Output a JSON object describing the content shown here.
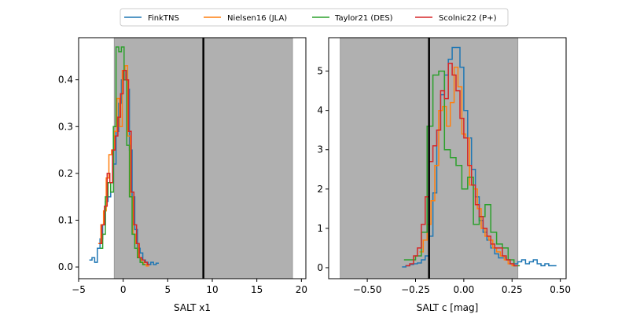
{
  "legend": {
    "placement": "top-center",
    "entries": [
      {
        "label": "FinkTNS",
        "color": "#1f77b4"
      },
      {
        "label": "Nielsen16 (JLA)",
        "color": "#ff7f0e"
      },
      {
        "label": "Taylor21 (DES)",
        "color": "#2ca02c"
      },
      {
        "label": "Scolnic22 (P+)",
        "color": "#d62728"
      }
    ]
  },
  "chart_data": [
    {
      "type": "step-histogram",
      "xlabel": "SALT x1",
      "ylabel": "",
      "xlim": [
        -5,
        20.5
      ],
      "ylim": [
        -0.025,
        0.49
      ],
      "xticks": [
        -5,
        0,
        5,
        10,
        15,
        20
      ],
      "xtick_labels": [
        "−5",
        "0",
        "5",
        "10",
        "15",
        "20"
      ],
      "yticks": [
        0.0,
        0.1,
        0.2,
        0.3,
        0.4
      ],
      "ytick_labels": [
        "0.0",
        "0.1",
        "0.2",
        "0.3",
        "0.4"
      ],
      "shaded_band": {
        "x0": -1.0,
        "x1": 19.0,
        "color": "#b0b0b0"
      },
      "vline": {
        "x": 9.0,
        "color": "#000000"
      },
      "grid": false,
      "series": [
        {
          "name": "FinkTNS",
          "color": "#1f77b4",
          "edges": [
            -3.8,
            -3.5,
            -3.2,
            -2.9,
            -2.6,
            -2.3,
            -2.0,
            -1.7,
            -1.4,
            -1.1,
            -0.8,
            -0.5,
            -0.2,
            0.1,
            0.4,
            0.7,
            1.0,
            1.3,
            1.6,
            1.9,
            2.2,
            2.5,
            2.8,
            3.1,
            3.4,
            3.7,
            4.0
          ],
          "values": [
            0.015,
            0.02,
            0.01,
            0.04,
            0.06,
            0.09,
            0.14,
            0.15,
            0.18,
            0.22,
            0.29,
            0.35,
            0.4,
            0.42,
            0.38,
            0.25,
            0.15,
            0.08,
            0.04,
            0.03,
            0.015,
            0.01,
            0.005,
            0.01,
            0.005,
            0.008
          ]
        },
        {
          "name": "Nielsen16 (JLA)",
          "color": "#ff7f0e",
          "edges": [
            -2.8,
            -2.5,
            -2.2,
            -1.9,
            -1.6,
            -1.3,
            -1.0,
            -0.7,
            -0.4,
            -0.1,
            0.2,
            0.5,
            0.8,
            1.1,
            1.4,
            1.7,
            2.0,
            2.3,
            2.6,
            2.9
          ],
          "values": [
            0.05,
            0.09,
            0.12,
            0.19,
            0.24,
            0.25,
            0.29,
            0.36,
            0.3,
            0.42,
            0.43,
            0.28,
            0.15,
            0.07,
            0.05,
            0.02,
            0.01,
            0.005,
            0.002
          ]
        },
        {
          "name": "Taylor21 (DES)",
          "color": "#2ca02c",
          "edges": [
            -2.6,
            -2.3,
            -2.0,
            -1.7,
            -1.4,
            -1.1,
            -0.8,
            -0.5,
            -0.2,
            0.1,
            0.4,
            0.7,
            1.0,
            1.3,
            1.6,
            1.9,
            2.2,
            2.5
          ],
          "values": [
            0.04,
            0.07,
            0.15,
            0.18,
            0.16,
            0.3,
            0.47,
            0.46,
            0.47,
            0.4,
            0.26,
            0.15,
            0.07,
            0.04,
            0.02,
            0.01,
            0.005
          ]
        },
        {
          "name": "Scolnic22 (P+)",
          "color": "#d62728",
          "edges": [
            -2.7,
            -2.4,
            -2.1,
            -1.8,
            -1.5,
            -1.2,
            -0.9,
            -0.6,
            -0.3,
            0.0,
            0.3,
            0.6,
            0.9,
            1.2,
            1.5,
            1.8,
            2.1,
            2.4,
            2.7,
            3.0
          ],
          "values": [
            0.05,
            0.09,
            0.13,
            0.2,
            0.18,
            0.25,
            0.28,
            0.32,
            0.37,
            0.42,
            0.4,
            0.29,
            0.16,
            0.09,
            0.05,
            0.02,
            0.015,
            0.01,
            0.005
          ]
        }
      ]
    },
    {
      "type": "step-histogram",
      "xlabel": "SALT c [mag]",
      "ylabel": "",
      "xlim": [
        -0.7,
        0.53
      ],
      "ylim": [
        -0.28,
        5.85
      ],
      "xticks": [
        -0.5,
        -0.25,
        0.0,
        0.25,
        0.5
      ],
      "xtick_labels": [
        "−0.50",
        "−0.25",
        "0.00",
        "0.25",
        "0.50"
      ],
      "yticks": [
        0,
        1,
        2,
        3,
        4,
        5
      ],
      "ytick_labels": [
        "0",
        "1",
        "2",
        "3",
        "4",
        "5"
      ],
      "shaded_band": {
        "x0": -0.64,
        "x1": 0.28,
        "color": "#b0b0b0"
      },
      "vline": {
        "x": -0.18,
        "color": "#000000"
      },
      "grid": false,
      "series": [
        {
          "name": "FinkTNS",
          "color": "#1f77b4",
          "edges": [
            -0.32,
            -0.3,
            -0.28,
            -0.26,
            -0.24,
            -0.22,
            -0.2,
            -0.18,
            -0.16,
            -0.14,
            -0.12,
            -0.1,
            -0.08,
            -0.06,
            -0.04,
            -0.02,
            0.0,
            0.02,
            0.04,
            0.06,
            0.08,
            0.1,
            0.12,
            0.14,
            0.16,
            0.18,
            0.2,
            0.22,
            0.24,
            0.26,
            0.28,
            0.3,
            0.32,
            0.34,
            0.36,
            0.38,
            0.4,
            0.42,
            0.44,
            0.46,
            0.48
          ],
          "values": [
            0.02,
            0.05,
            0.08,
            0.1,
            0.12,
            0.2,
            0.3,
            0.8,
            1.9,
            3.5,
            4.4,
            4.9,
            5.3,
            5.6,
            5.6,
            5.1,
            4.0,
            3.3,
            2.5,
            1.8,
            1.2,
            0.9,
            0.7,
            0.5,
            0.35,
            0.25,
            0.25,
            0.2,
            0.1,
            0.1,
            0.15,
            0.2,
            0.1,
            0.15,
            0.2,
            0.1,
            0.05,
            0.1,
            0.05,
            0.05
          ]
        },
        {
          "name": "Nielsen16 (JLA)",
          "color": "#ff7f0e",
          "edges": [
            -0.23,
            -0.21,
            -0.19,
            -0.17,
            -0.15,
            -0.13,
            -0.11,
            -0.09,
            -0.07,
            -0.05,
            -0.03,
            -0.01,
            0.01,
            0.03,
            0.05,
            0.07,
            0.09,
            0.11,
            0.13,
            0.15,
            0.17,
            0.19,
            0.21,
            0.23,
            0.25,
            0.27
          ],
          "values": [
            0.4,
            0.7,
            1.1,
            1.7,
            2.6,
            4.0,
            4.1,
            3.6,
            4.2,
            5.1,
            4.6,
            3.4,
            3.3,
            2.1,
            2.0,
            1.5,
            1.0,
            0.8,
            0.7,
            0.5,
            0.4,
            0.3,
            0.2,
            0.1,
            0.05
          ]
        },
        {
          "name": "Taylor21 (DES)",
          "color": "#2ca02c",
          "edges": [
            -0.31,
            -0.28,
            -0.25,
            -0.22,
            -0.19,
            -0.16,
            -0.13,
            -0.1,
            -0.07,
            -0.04,
            -0.01,
            0.02,
            0.05,
            0.08,
            0.11,
            0.14,
            0.17,
            0.2,
            0.23,
            0.26,
            0.29
          ],
          "values": [
            0.2,
            0.2,
            0.3,
            0.9,
            3.6,
            4.9,
            5.0,
            3.0,
            2.8,
            2.6,
            2.0,
            2.3,
            1.1,
            1.3,
            1.6,
            0.9,
            0.6,
            0.5,
            0.2,
            0.05
          ]
        },
        {
          "name": "Scolnic22 (P+)",
          "color": "#d62728",
          "edges": [
            -0.3,
            -0.28,
            -0.26,
            -0.24,
            -0.22,
            -0.2,
            -0.18,
            -0.16,
            -0.14,
            -0.12,
            -0.1,
            -0.08,
            -0.06,
            -0.04,
            -0.02,
            0.0,
            0.02,
            0.04,
            0.06,
            0.08,
            0.1,
            0.12,
            0.14,
            0.16,
            0.18,
            0.2,
            0.22,
            0.24,
            0.26,
            0.28
          ],
          "values": [
            0.05,
            0.1,
            0.3,
            0.5,
            1.1,
            1.8,
            2.7,
            3.1,
            3.5,
            4.5,
            4.3,
            5.2,
            4.9,
            4.5,
            3.8,
            3.3,
            2.6,
            2.1,
            1.6,
            1.3,
            1.0,
            0.8,
            0.6,
            0.5,
            0.5,
            0.3,
            0.2,
            0.1,
            0.05
          ]
        }
      ]
    }
  ]
}
